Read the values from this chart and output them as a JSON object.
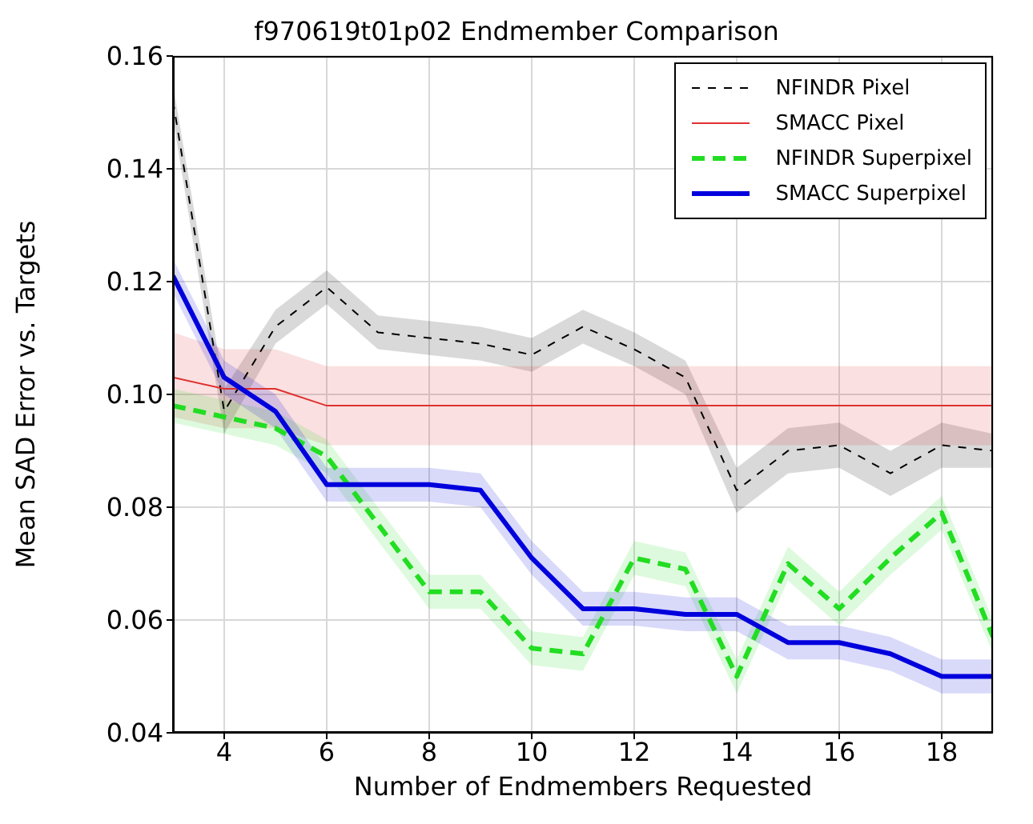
{
  "chart_data": {
    "type": "line",
    "title": "f970619t01p02 Endmember Comparison",
    "xlabel": "Number of Endmembers Requested",
    "ylabel": "Mean SAD Error vs. Targets",
    "x": [
      3,
      4,
      5,
      6,
      7,
      8,
      9,
      10,
      11,
      12,
      13,
      14,
      15,
      16,
      17,
      18,
      19
    ],
    "xlim": [
      3,
      19
    ],
    "xticks": [
      4,
      6,
      8,
      10,
      12,
      14,
      16,
      18
    ],
    "ylim": [
      0.04,
      0.16
    ],
    "yticks": [
      0.04,
      0.06,
      0.08,
      {
        "value": 0.1,
        "label": "0.10"
      },
      0.12,
      0.14,
      0.16
    ],
    "grid": true,
    "legend": "top right",
    "marker": "none",
    "series": [
      {
        "name": "NFINDR Pixel",
        "color": "#000000",
        "line_style": "dashed",
        "values": [
          0.152,
          0.097,
          0.112,
          0.119,
          0.111,
          0.11,
          0.109,
          0.107,
          0.112,
          0.108,
          0.103,
          0.083,
          0.09,
          0.091,
          0.086,
          0.091,
          0.09
        ],
        "lower": [
          0.149,
          0.093,
          0.109,
          0.116,
          0.108,
          0.107,
          0.106,
          0.104,
          0.109,
          0.105,
          0.1,
          0.079,
          0.086,
          0.087,
          0.082,
          0.087,
          0.087
        ],
        "upper": [
          0.155,
          0.101,
          0.115,
          0.122,
          0.114,
          0.113,
          0.112,
          0.11,
          0.115,
          0.111,
          0.106,
          0.087,
          0.094,
          0.095,
          0.09,
          0.095,
          0.093
        ]
      },
      {
        "name": "SMACC Pixel",
        "color": "#e03030",
        "line_style": "solid",
        "values": [
          0.103,
          0.101,
          0.101,
          0.098,
          0.098,
          0.098,
          0.098,
          0.098,
          0.098,
          0.098,
          0.098,
          0.098,
          0.098,
          0.098,
          0.098,
          0.098,
          0.098
        ],
        "lower": [
          0.096,
          0.094,
          0.094,
          0.091,
          0.091,
          0.091,
          0.091,
          0.091,
          0.091,
          0.091,
          0.091,
          0.091,
          0.091,
          0.091,
          0.091,
          0.091,
          0.091
        ],
        "upper": [
          0.111,
          0.108,
          0.108,
          0.105,
          0.105,
          0.105,
          0.105,
          0.105,
          0.105,
          0.105,
          0.105,
          0.105,
          0.105,
          0.105,
          0.105,
          0.105,
          0.105
        ]
      },
      {
        "name": "NFINDR Superpixel",
        "color": "#22dd22",
        "line_style": "dashed",
        "values": [
          0.098,
          0.096,
          0.094,
          0.089,
          0.077,
          0.065,
          0.065,
          0.055,
          0.054,
          0.071,
          0.069,
          0.05,
          0.07,
          0.062,
          0.071,
          0.079,
          0.057
        ],
        "lower": [
          0.095,
          0.093,
          0.091,
          0.086,
          0.074,
          0.062,
          0.062,
          0.052,
          0.051,
          0.068,
          0.066,
          0.047,
          0.067,
          0.059,
          0.068,
          0.076,
          0.054
        ],
        "upper": [
          0.101,
          0.099,
          0.097,
          0.092,
          0.08,
          0.068,
          0.068,
          0.058,
          0.057,
          0.074,
          0.072,
          0.053,
          0.073,
          0.065,
          0.074,
          0.082,
          0.06
        ]
      },
      {
        "name": "SMACC Superpixel",
        "color": "#0000dd",
        "line_style": "solid",
        "values": [
          0.121,
          0.103,
          0.097,
          0.084,
          0.084,
          0.084,
          0.083,
          0.071,
          0.062,
          0.062,
          0.061,
          0.061,
          0.056,
          0.056,
          0.054,
          0.05,
          0.05
        ],
        "lower": [
          0.118,
          0.1,
          0.094,
          0.081,
          0.081,
          0.081,
          0.08,
          0.068,
          0.059,
          0.059,
          0.058,
          0.058,
          0.053,
          0.053,
          0.051,
          0.047,
          0.047
        ],
        "upper": [
          0.124,
          0.106,
          0.1,
          0.087,
          0.087,
          0.087,
          0.086,
          0.074,
          0.065,
          0.065,
          0.064,
          0.064,
          0.059,
          0.059,
          0.057,
          0.053,
          0.053
        ]
      }
    ]
  }
}
